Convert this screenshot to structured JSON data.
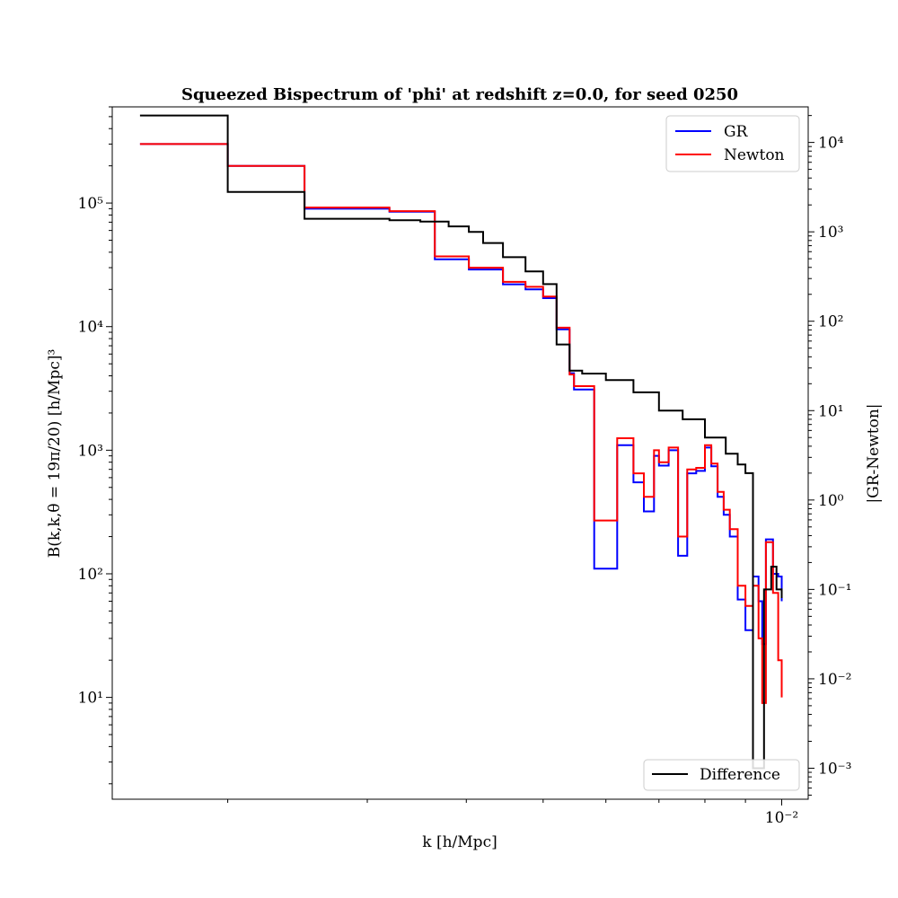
{
  "chart_data": {
    "type": "line",
    "title": "Squeezed Bispectrum of 'phi' at redshift z=0.0, for seed 0250",
    "xlabel": "k [h/Mpc]",
    "ylabel": "B(k,k,θ = 19π/20) [h/Mpc]³",
    "ylabel_right": "|GR-Newton|",
    "xscale": "log",
    "yscale": "log",
    "xlim": [
      0.00143,
      0.0108
    ],
    "ylim": [
      1.5,
      600000
    ],
    "ylim_right": [
      0.00045,
      25000
    ],
    "x_tick_labels": [
      {
        "value": 0.01,
        "label": "10⁻²"
      }
    ],
    "y_tick_labels": [
      {
        "value": 10,
        "label": "10¹"
      },
      {
        "value": 100,
        "label": "10²"
      },
      {
        "value": 1000,
        "label": "10³"
      },
      {
        "value": 10000,
        "label": "10⁴"
      },
      {
        "value": 100000,
        "label": "10⁵"
      }
    ],
    "y_right_tick_labels": [
      {
        "value": 0.001,
        "label": "10⁻³"
      },
      {
        "value": 0.01,
        "label": "10⁻²"
      },
      {
        "value": 0.1,
        "label": "10⁻¹"
      },
      {
        "value": 1,
        "label": "10⁰"
      },
      {
        "value": 10,
        "label": "10¹"
      },
      {
        "value": 100,
        "label": "10²"
      },
      {
        "value": 1000,
        "label": "10³"
      },
      {
        "value": 10000,
        "label": "10⁴"
      }
    ],
    "legend_top": {
      "placement": "top-right",
      "entries": [
        "GR",
        "Newton"
      ]
    },
    "legend_bottom": {
      "placement": "bottom-right",
      "entries": [
        "Difference"
      ]
    },
    "series": [
      {
        "name": "GR",
        "color": "#0000ff",
        "axis": "left",
        "drawstyle": "steps",
        "x": [
          0.00155,
          0.002,
          0.0025,
          0.0032,
          0.00365,
          0.00403,
          0.00445,
          0.00475,
          0.005,
          0.0052,
          0.0054,
          0.00547,
          0.00551,
          0.0058,
          0.0062,
          0.0065,
          0.0067,
          0.0069,
          0.007,
          0.0072,
          0.0074,
          0.0076,
          0.0078,
          0.008,
          0.00815,
          0.0083,
          0.00845,
          0.0086,
          0.0088,
          0.009,
          0.0092,
          0.00935,
          0.00945,
          0.00955,
          0.00975,
          0.0099,
          0.01
        ],
        "y": [
          300000,
          200000,
          90000,
          85000,
          35000,
          29000,
          22000,
          20000,
          17000,
          9500,
          4200,
          3100,
          3100,
          110,
          1100,
          550,
          320,
          900,
          750,
          1000,
          140,
          650,
          680,
          1050,
          740,
          420,
          300,
          200,
          62,
          35,
          95,
          60,
          27,
          190,
          100,
          95,
          60
        ]
      },
      {
        "name": "Newton",
        "color": "#ff0000",
        "axis": "left",
        "drawstyle": "steps",
        "x": [
          0.00155,
          0.002,
          0.0025,
          0.0032,
          0.00365,
          0.00403,
          0.00445,
          0.00475,
          0.005,
          0.0052,
          0.0054,
          0.00547,
          0.00551,
          0.0058,
          0.0062,
          0.0065,
          0.0067,
          0.0069,
          0.007,
          0.0072,
          0.0074,
          0.0076,
          0.0078,
          0.008,
          0.00815,
          0.0083,
          0.00845,
          0.0086,
          0.0088,
          0.009,
          0.0092,
          0.00935,
          0.00945,
          0.00955,
          0.00975,
          0.0099,
          0.01
        ],
        "y": [
          300000,
          200000,
          92000,
          86000,
          37000,
          30000,
          23000,
          21000,
          17500,
          9800,
          4100,
          3300,
          3300,
          270,
          1250,
          650,
          420,
          1000,
          800,
          1050,
          200,
          700,
          720,
          1100,
          780,
          460,
          330,
          230,
          80,
          55,
          80,
          30,
          9,
          180,
          70,
          20,
          10
        ]
      },
      {
        "name": "Difference",
        "color": "#000000",
        "axis": "right",
        "drawstyle": "steps",
        "x": [
          0.00155,
          0.002,
          0.0025,
          0.0032,
          0.0035,
          0.0038,
          0.00403,
          0.0042,
          0.00445,
          0.00475,
          0.005,
          0.0052,
          0.0054,
          0.0056,
          0.006,
          0.0065,
          0.007,
          0.0075,
          0.008,
          0.0085,
          0.0088,
          0.009,
          0.0092,
          0.0095,
          0.0097,
          0.00985,
          0.01
        ],
        "y": [
          20000,
          2800,
          1400,
          1350,
          1300,
          1150,
          1000,
          750,
          520,
          360,
          260,
          55,
          28,
          26,
          22,
          16,
          10,
          8,
          5,
          3.3,
          2.5,
          2.0,
          0.001,
          0.1,
          0.18,
          0.1,
          0.08
        ]
      }
    ]
  }
}
